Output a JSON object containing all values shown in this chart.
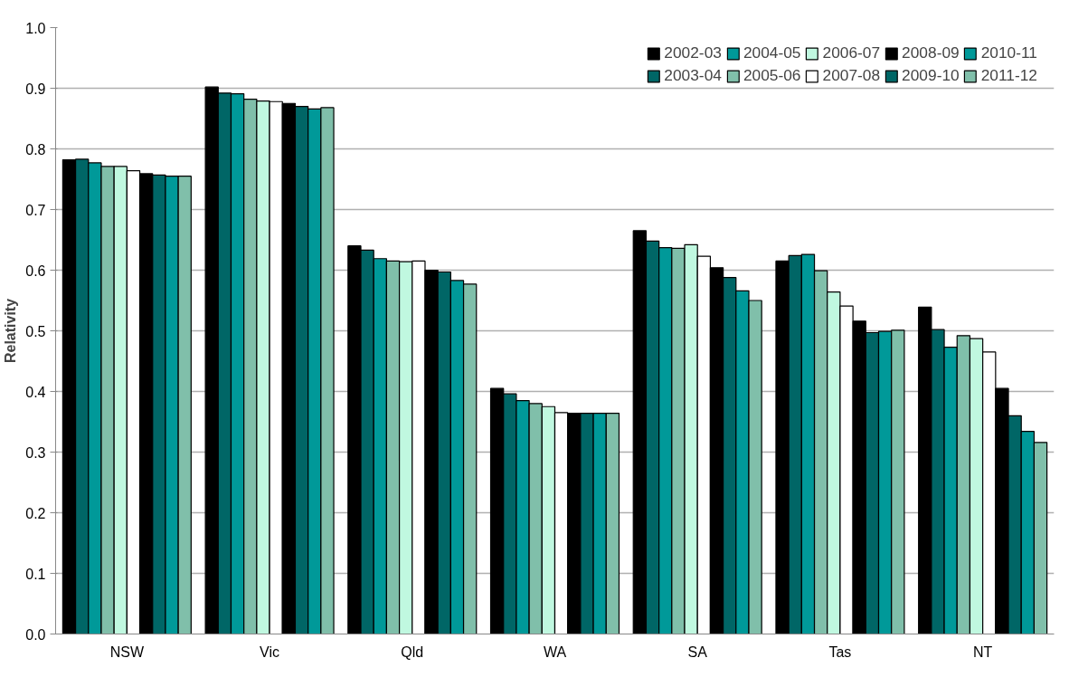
{
  "chart_data": {
    "type": "bar",
    "ylabel": "Relativity",
    "categories": [
      "NSW",
      "Vic",
      "Qld",
      "WA",
      "SA",
      "Tas",
      "NT"
    ],
    "ylim": [
      0,
      1.0
    ],
    "yticks": [
      {
        "value": 0,
        "label": "0.0"
      },
      0.1,
      0.2,
      0.3,
      0.4,
      0.5,
      0.6,
      0.7,
      0.8,
      0.9,
      {
        "value": 1.0,
        "label": "1.0"
      }
    ],
    "grid": "y",
    "legend": "top right",
    "series": [
      {
        "name": "2002-03",
        "color": "#000000",
        "values": [
          0.782,
          0.902,
          0.64,
          0.405,
          0.665,
          0.615,
          0.539
        ]
      },
      {
        "name": "2003-04",
        "color": "#006666",
        "values": [
          0.783,
          0.892,
          0.633,
          0.396,
          0.648,
          0.624,
          0.502
        ]
      },
      {
        "name": "2004-05",
        "color": "#009999",
        "values": [
          0.777,
          0.891,
          0.619,
          0.385,
          0.637,
          0.626,
          0.473
        ]
      },
      {
        "name": "2005-06",
        "color": "#80bfaa",
        "values": [
          0.771,
          0.882,
          0.615,
          0.38,
          0.636,
          0.599,
          0.492
        ]
      },
      {
        "name": "2006-07",
        "color": "#c0f8e0",
        "values": [
          0.771,
          0.879,
          0.614,
          0.375,
          0.642,
          0.564,
          0.487
        ]
      },
      {
        "name": "2007-08",
        "color": "#ffffff",
        "values": [
          0.764,
          0.878,
          0.615,
          0.365,
          0.623,
          0.541,
          0.465
        ]
      },
      {
        "name": "2008-09",
        "color": "#000000",
        "values": [
          0.759,
          0.875,
          0.6,
          0.364,
          0.604,
          0.516,
          0.405
        ]
      },
      {
        "name": "2009-10",
        "color": "#006666",
        "values": [
          0.757,
          0.87,
          0.597,
          0.364,
          0.588,
          0.497,
          0.36
        ]
      },
      {
        "name": "2010-11",
        "color": "#009999",
        "values": [
          0.755,
          0.866,
          0.583,
          0.364,
          0.566,
          0.499,
          0.334
        ]
      },
      {
        "name": "2011-12",
        "color": "#80bfaa",
        "values": [
          0.755,
          0.868,
          0.577,
          0.364,
          0.55,
          0.501,
          0.316
        ]
      }
    ]
  }
}
